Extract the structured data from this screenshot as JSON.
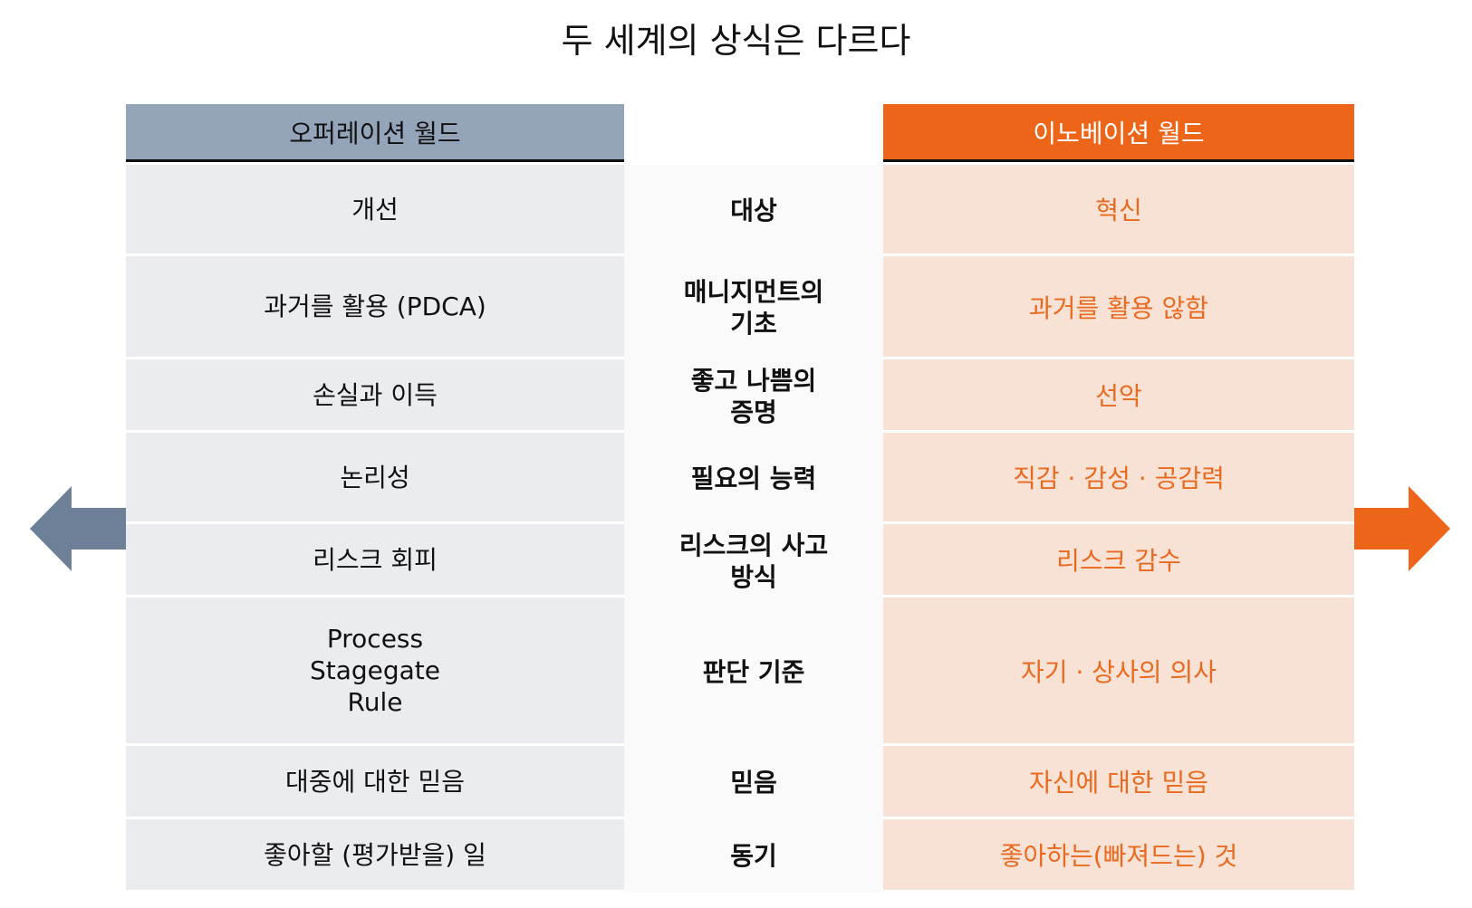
{
  "title": "두 세계의 상식은 다르다",
  "left_header": "오퍼레이션 월드",
  "right_header": "이노베이션 월드",
  "colors": {
    "left_header_bg": "#95a5b9",
    "left_cell_bg": "#eaecf0",
    "right_header_bg": "#ec6519",
    "right_cell_bg": "#f8e2d6",
    "right_text": "#e96a1e",
    "left_arrow": "#6e8097",
    "right_arrow": "#ec6519"
  },
  "icons": {
    "left": "arrow-left-icon",
    "right": "arrow-right-icon"
  },
  "rows": [
    {
      "left": "개선",
      "mid": "대상",
      "right": "혁신"
    },
    {
      "left": "과거를 활용 (PDCA)",
      "mid": "매니지먼트의\n기초",
      "right": "과거를 활용 않함"
    },
    {
      "left": "손실과 이득",
      "mid": "좋고 나쁨의\n증명",
      "right": "선악"
    },
    {
      "left": "논리성",
      "mid": "필요의 능력",
      "right": "직감 · 감성 · 공감력"
    },
    {
      "left": "리스크 회피",
      "mid": "리스크의 사고\n방식",
      "right": "리스크 감수"
    },
    {
      "left": "Process\nStagegate\nRule",
      "mid": "판단 기준",
      "right": "자기 · 상사의 의사"
    },
    {
      "left": "대중에 대한 믿음",
      "mid": "믿음",
      "right": "자신에 대한 믿음"
    },
    {
      "left": "좋아할 (평가받을) 일",
      "mid": "동기",
      "right": "좋아하는(빠져드는) 것"
    }
  ]
}
